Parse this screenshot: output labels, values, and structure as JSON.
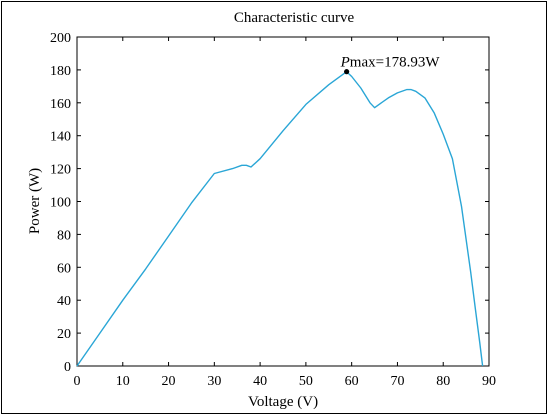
{
  "chart_data": {
    "type": "line",
    "title": "Characteristic curve",
    "xlabel": "Voltage (V)",
    "ylabel": "Power (W)",
    "xlim": [
      0,
      90
    ],
    "ylim": [
      0,
      200
    ],
    "xticks": [
      "0",
      "10",
      "20",
      "30",
      "40",
      "50",
      "60",
      "70",
      "80",
      "90"
    ],
    "yticks": [
      "0",
      "20",
      "40",
      "60",
      "80",
      "100",
      "120",
      "140",
      "160",
      "180",
      "200"
    ],
    "grid": false,
    "legend": "none",
    "series": [
      {
        "color": "#2aa6d6",
        "x": [
          0,
          5,
          10,
          15,
          20,
          25,
          30,
          34,
          36,
          37,
          38,
          40,
          45,
          50,
          55,
          58.9,
          60,
          62,
          64,
          65,
          66,
          68,
          70,
          72,
          73,
          74,
          76,
          78,
          80,
          82,
          84,
          86,
          87,
          88,
          88.6
        ],
        "y": [
          0,
          20,
          40,
          59,
          79,
          99,
          117,
          120,
          122,
          122,
          121,
          126,
          143,
          159,
          171,
          178.93,
          176,
          169,
          160,
          157,
          159,
          163,
          166,
          168,
          168,
          167,
          163,
          154,
          141,
          126,
          97,
          57,
          35,
          14,
          0
        ]
      }
    ],
    "annotations": [
      {
        "italic": "P",
        "text": "max=178.93W",
        "x": 58.9,
        "y": 178.93
      }
    ]
  }
}
